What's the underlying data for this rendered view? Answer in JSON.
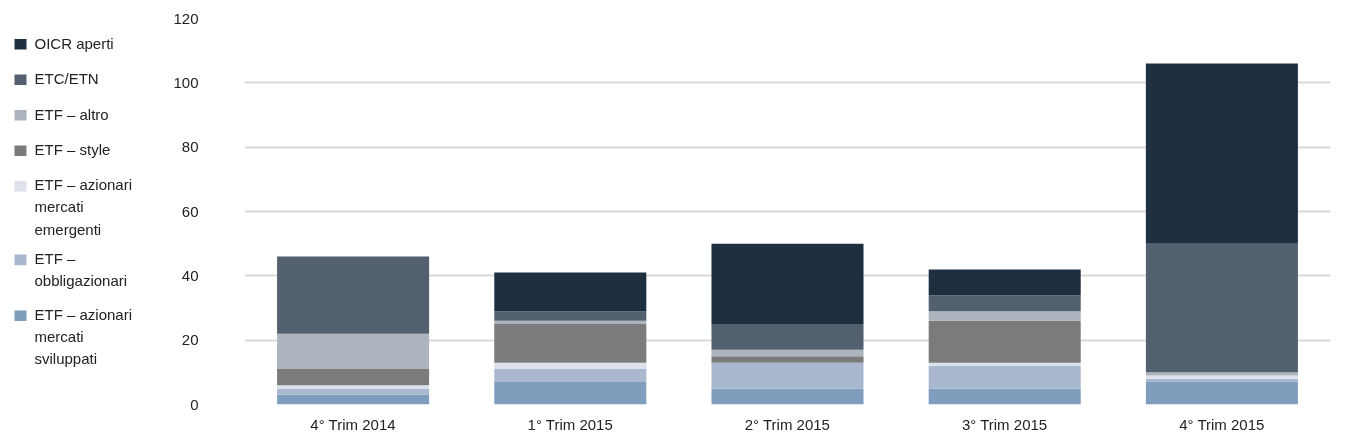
{
  "chart_data": {
    "type": "bar",
    "stacked": true,
    "categories": [
      "4° Trim 2014",
      "1° Trim 2015",
      "2° Trim 2015",
      "3° Trim 2015",
      "4° Trim 2015"
    ],
    "series": [
      {
        "name": "ETF – azionari mercati sviluppati",
        "color": "#7f9ebd",
        "values": [
          3,
          7,
          5,
          5,
          7
        ]
      },
      {
        "name": "ETF – obbligazionari",
        "color": "#a9b8cf",
        "values": [
          2,
          4,
          8,
          7,
          1
        ]
      },
      {
        "name": "ETF – azionari mercati emergenti",
        "color": "#dde1ec",
        "values": [
          1,
          2,
          0,
          1,
          1
        ]
      },
      {
        "name": "ETF – style",
        "color": "#7b7b7b",
        "values": [
          5,
          12,
          2,
          13,
          0
        ]
      },
      {
        "name": "ETF – altro",
        "color": "#adb3bd",
        "values": [
          11,
          1,
          2,
          3,
          1
        ]
      },
      {
        "name": "ETC/ETN",
        "color": "#526070",
        "values": [
          24,
          3,
          8,
          5,
          40
        ]
      },
      {
        "name": "OICR aperti",
        "color": "#1e3040",
        "values": [
          0,
          12,
          25,
          8,
          56
        ]
      }
    ],
    "ylim": [
      0,
      120
    ],
    "yticks": [
      0,
      20,
      40,
      60,
      80,
      100,
      120
    ],
    "grid": "y",
    "legend": "left"
  }
}
